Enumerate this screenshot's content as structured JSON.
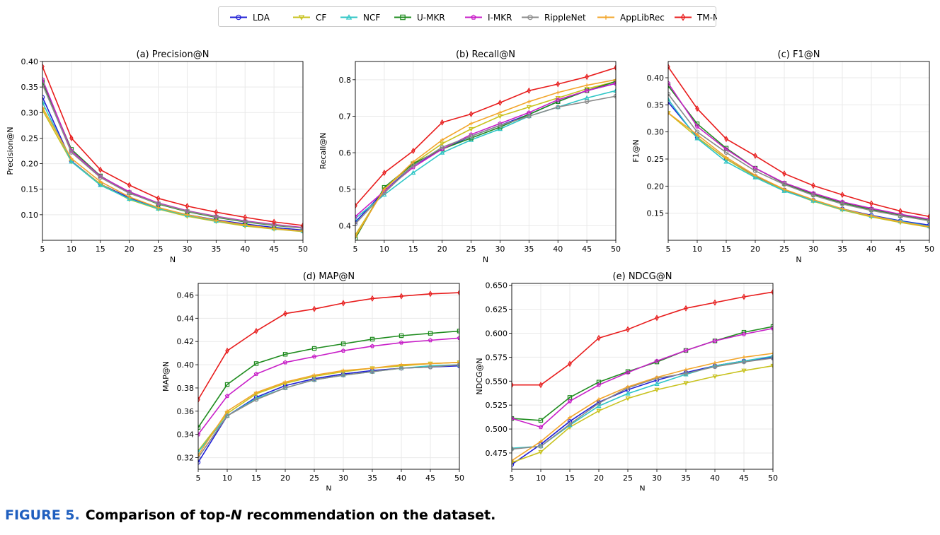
{
  "legend": {
    "position": "top-center",
    "entries": [
      {
        "name": "LDA",
        "color": "#1f1fd6",
        "marker": "o"
      },
      {
        "name": "CF",
        "color": "#c8c21e",
        "marker": "v"
      },
      {
        "name": "NCF",
        "color": "#2ec6c6",
        "marker": "^"
      },
      {
        "name": "U-MKR",
        "color": "#1f8c1f",
        "marker": "s"
      },
      {
        "name": "I-MKR",
        "color": "#c81ec8",
        "marker": "p"
      },
      {
        "name": "RippleNet",
        "color": "#8a8a8a",
        "marker": "o"
      },
      {
        "name": "AppLibRec",
        "color": "#f2a52a",
        "marker": "+"
      },
      {
        "name": "TM-MKR",
        "color": "#e81c1c",
        "marker": "d"
      }
    ]
  },
  "caption": {
    "label": "FIGURE 5.",
    "text_parts": [
      "Comparison of top-",
      "N",
      " recommendation on the dataset."
    ]
  },
  "chart_data": [
    {
      "type": "line",
      "title": "(a) Precision@N",
      "xlabel": "N",
      "ylabel": "Precision@N",
      "x": [
        5,
        10,
        15,
        20,
        25,
        30,
        35,
        40,
        45,
        50
      ],
      "xlim": [
        5,
        50
      ],
      "ylim": [
        0.05,
        0.4
      ],
      "yticks": [
        "0.10",
        "0.15",
        "0.20",
        "0.25",
        "0.30",
        "0.35",
        "0.40"
      ],
      "grid": true,
      "series": [
        {
          "name": "LDA",
          "values": [
            0.33,
            0.205,
            0.16,
            0.133,
            0.113,
            0.1,
            0.09,
            0.082,
            0.075,
            0.07
          ]
        },
        {
          "name": "CF",
          "values": [
            0.305,
            0.204,
            0.16,
            0.13,
            0.111,
            0.097,
            0.087,
            0.078,
            0.072,
            0.067
          ]
        },
        {
          "name": "NCF",
          "values": [
            0.32,
            0.204,
            0.158,
            0.131,
            0.112,
            0.099,
            0.088,
            0.08,
            0.073,
            0.068
          ]
        },
        {
          "name": "U-MKR",
          "values": [
            0.36,
            0.228,
            0.176,
            0.143,
            0.121,
            0.106,
            0.095,
            0.086,
            0.079,
            0.074
          ]
        },
        {
          "name": "I-MKR",
          "values": [
            0.365,
            0.225,
            0.175,
            0.145,
            0.123,
            0.108,
            0.097,
            0.088,
            0.081,
            0.075
          ]
        },
        {
          "name": "RippleNet",
          "values": [
            0.355,
            0.222,
            0.173,
            0.142,
            0.122,
            0.107,
            0.096,
            0.087,
            0.08,
            0.074
          ]
        },
        {
          "name": "AppLibRec",
          "values": [
            0.31,
            0.21,
            0.165,
            0.135,
            0.114,
            0.1,
            0.089,
            0.08,
            0.073,
            0.068
          ]
        },
        {
          "name": "TM-MKR",
          "values": [
            0.39,
            0.25,
            0.188,
            0.158,
            0.132,
            0.117,
            0.105,
            0.095,
            0.086,
            0.079
          ]
        }
      ]
    },
    {
      "type": "line",
      "title": "(b) Recall@N",
      "xlabel": "N",
      "ylabel": "Recall@N",
      "x": [
        5,
        10,
        15,
        20,
        25,
        30,
        35,
        40,
        45,
        50
      ],
      "xlim": [
        5,
        50
      ],
      "ylim": [
        0.36,
        0.85
      ],
      "yticks": [
        "0.4",
        "0.5",
        "0.6",
        "0.7",
        "0.8"
      ],
      "grid": true,
      "series": [
        {
          "name": "LDA",
          "values": [
            0.41,
            0.495,
            0.565,
            0.61,
            0.645,
            0.675,
            0.705,
            0.74,
            0.77,
            0.79
          ]
        },
        {
          "name": "CF",
          "values": [
            0.375,
            0.5,
            0.57,
            0.625,
            0.665,
            0.7,
            0.725,
            0.75,
            0.775,
            0.795
          ]
        },
        {
          "name": "NCF",
          "values": [
            0.42,
            0.485,
            0.545,
            0.6,
            0.635,
            0.665,
            0.7,
            0.725,
            0.75,
            0.77
          ]
        },
        {
          "name": "U-MKR",
          "values": [
            0.365,
            0.505,
            0.57,
            0.61,
            0.64,
            0.67,
            0.705,
            0.74,
            0.77,
            0.795
          ]
        },
        {
          "name": "I-MKR",
          "values": [
            0.425,
            0.495,
            0.56,
            0.61,
            0.65,
            0.68,
            0.71,
            0.745,
            0.77,
            0.79
          ]
        },
        {
          "name": "RippleNet",
          "values": [
            0.405,
            0.49,
            0.565,
            0.615,
            0.645,
            0.675,
            0.7,
            0.725,
            0.74,
            0.755
          ]
        },
        {
          "name": "AppLibRec",
          "values": [
            0.37,
            0.5,
            0.575,
            0.635,
            0.68,
            0.71,
            0.74,
            0.765,
            0.785,
            0.8
          ]
        },
        {
          "name": "TM-MKR",
          "values": [
            0.455,
            0.545,
            0.605,
            0.683,
            0.706,
            0.737,
            0.77,
            0.788,
            0.808,
            0.833
          ]
        }
      ]
    },
    {
      "type": "line",
      "title": "(c) F1@N",
      "xlabel": "N",
      "ylabel": "F1@N",
      "x": [
        5,
        10,
        15,
        20,
        25,
        30,
        35,
        40,
        45,
        50
      ],
      "xlim": [
        5,
        50
      ],
      "ylim": [
        0.1,
        0.43
      ],
      "yticks": [
        "0.15",
        "0.20",
        "0.25",
        "0.30",
        "0.35",
        "0.40"
      ],
      "grid": true,
      "series": [
        {
          "name": "LDA",
          "values": [
            0.355,
            0.29,
            0.25,
            0.218,
            0.193,
            0.174,
            0.158,
            0.146,
            0.136,
            0.128
          ]
        },
        {
          "name": "CF",
          "values": [
            0.335,
            0.29,
            0.25,
            0.217,
            0.192,
            0.172,
            0.156,
            0.143,
            0.133,
            0.124
          ]
        },
        {
          "name": "NCF",
          "values": [
            0.36,
            0.288,
            0.245,
            0.216,
            0.191,
            0.173,
            0.157,
            0.145,
            0.135,
            0.126
          ]
        },
        {
          "name": "U-MKR",
          "values": [
            0.385,
            0.315,
            0.27,
            0.233,
            0.205,
            0.185,
            0.169,
            0.157,
            0.146,
            0.137
          ]
        },
        {
          "name": "I-MKR",
          "values": [
            0.39,
            0.31,
            0.268,
            0.233,
            0.206,
            0.187,
            0.171,
            0.159,
            0.148,
            0.139
          ]
        },
        {
          "name": "RippleNet",
          "values": [
            0.37,
            0.3,
            0.262,
            0.228,
            0.203,
            0.183,
            0.167,
            0.155,
            0.145,
            0.136
          ]
        },
        {
          "name": "AppLibRec",
          "values": [
            0.335,
            0.295,
            0.253,
            0.22,
            0.194,
            0.175,
            0.158,
            0.145,
            0.134,
            0.125
          ]
        },
        {
          "name": "TM-MKR",
          "values": [
            0.42,
            0.343,
            0.287,
            0.256,
            0.223,
            0.201,
            0.184,
            0.168,
            0.154,
            0.144
          ]
        }
      ]
    },
    {
      "type": "line",
      "title": "(d) MAP@N",
      "xlabel": "N",
      "ylabel": "MAP@N",
      "x": [
        5,
        10,
        15,
        20,
        25,
        30,
        35,
        40,
        45,
        50
      ],
      "xlim": [
        5,
        50
      ],
      "ylim": [
        0.31,
        0.47
      ],
      "yticks": [
        "0.32",
        "0.34",
        "0.36",
        "0.38",
        "0.40",
        "0.42",
        "0.44",
        "0.46"
      ],
      "grid": true,
      "series": [
        {
          "name": "LDA",
          "values": [
            0.316,
            0.356,
            0.372,
            0.382,
            0.388,
            0.392,
            0.395,
            0.397,
            0.398,
            0.399
          ]
        },
        {
          "name": "CF",
          "values": [
            0.326,
            0.358,
            0.375,
            0.384,
            0.39,
            0.394,
            0.397,
            0.399,
            0.401,
            0.402
          ]
        },
        {
          "name": "NCF",
          "values": [
            0.325,
            0.356,
            0.371,
            0.38,
            0.387,
            0.391,
            0.394,
            0.397,
            0.399,
            0.4
          ]
        },
        {
          "name": "U-MKR",
          "values": [
            0.346,
            0.383,
            0.401,
            0.409,
            0.414,
            0.418,
            0.422,
            0.425,
            0.427,
            0.429
          ]
        },
        {
          "name": "I-MKR",
          "values": [
            0.34,
            0.373,
            0.392,
            0.402,
            0.407,
            0.412,
            0.416,
            0.419,
            0.421,
            0.423
          ]
        },
        {
          "name": "RippleNet",
          "values": [
            0.32,
            0.356,
            0.37,
            0.38,
            0.387,
            0.391,
            0.394,
            0.397,
            0.398,
            0.4
          ]
        },
        {
          "name": "AppLibRec",
          "values": [
            0.322,
            0.36,
            0.376,
            0.385,
            0.391,
            0.395,
            0.397,
            0.4,
            0.401,
            0.402
          ]
        },
        {
          "name": "TM-MKR",
          "values": [
            0.37,
            0.412,
            0.429,
            0.444,
            0.448,
            0.453,
            0.457,
            0.459,
            0.461,
            0.462
          ]
        }
      ]
    },
    {
      "type": "line",
      "title": "(e) NDCG@N",
      "xlabel": "N",
      "ylabel": "NDCG@N",
      "x": [
        5,
        10,
        15,
        20,
        25,
        30,
        35,
        40,
        45,
        50
      ],
      "xlim": [
        5,
        50
      ],
      "ylim": [
        0.458,
        0.652
      ],
      "yticks": [
        "0.475",
        "0.500",
        "0.525",
        "0.550",
        "0.575",
        "0.600",
        "0.625",
        "0.650"
      ],
      "grid": true,
      "series": [
        {
          "name": "LDA",
          "values": [
            0.463,
            0.484,
            0.508,
            0.528,
            0.541,
            0.551,
            0.559,
            0.566,
            0.571,
            0.575
          ]
        },
        {
          "name": "CF",
          "values": [
            0.465,
            0.476,
            0.502,
            0.519,
            0.532,
            0.541,
            0.548,
            0.555,
            0.561,
            0.566
          ]
        },
        {
          "name": "NCF",
          "values": [
            0.48,
            0.482,
            0.504,
            0.524,
            0.537,
            0.547,
            0.557,
            0.566,
            0.571,
            0.576
          ]
        },
        {
          "name": "U-MKR",
          "values": [
            0.511,
            0.509,
            0.533,
            0.549,
            0.56,
            0.57,
            0.582,
            0.592,
            0.601,
            0.607
          ]
        },
        {
          "name": "I-MKR",
          "values": [
            0.511,
            0.502,
            0.529,
            0.546,
            0.559,
            0.571,
            0.582,
            0.592,
            0.599,
            0.605
          ]
        },
        {
          "name": "RippleNet",
          "values": [
            0.479,
            0.482,
            0.505,
            0.527,
            0.543,
            0.553,
            0.558,
            0.565,
            0.57,
            0.574
          ]
        },
        {
          "name": "AppLibRec",
          "values": [
            0.467,
            0.487,
            0.512,
            0.531,
            0.544,
            0.554,
            0.562,
            0.569,
            0.575,
            0.579
          ]
        },
        {
          "name": "TM-MKR",
          "values": [
            0.546,
            0.546,
            0.568,
            0.595,
            0.604,
            0.616,
            0.626,
            0.632,
            0.638,
            0.643
          ]
        }
      ]
    }
  ]
}
